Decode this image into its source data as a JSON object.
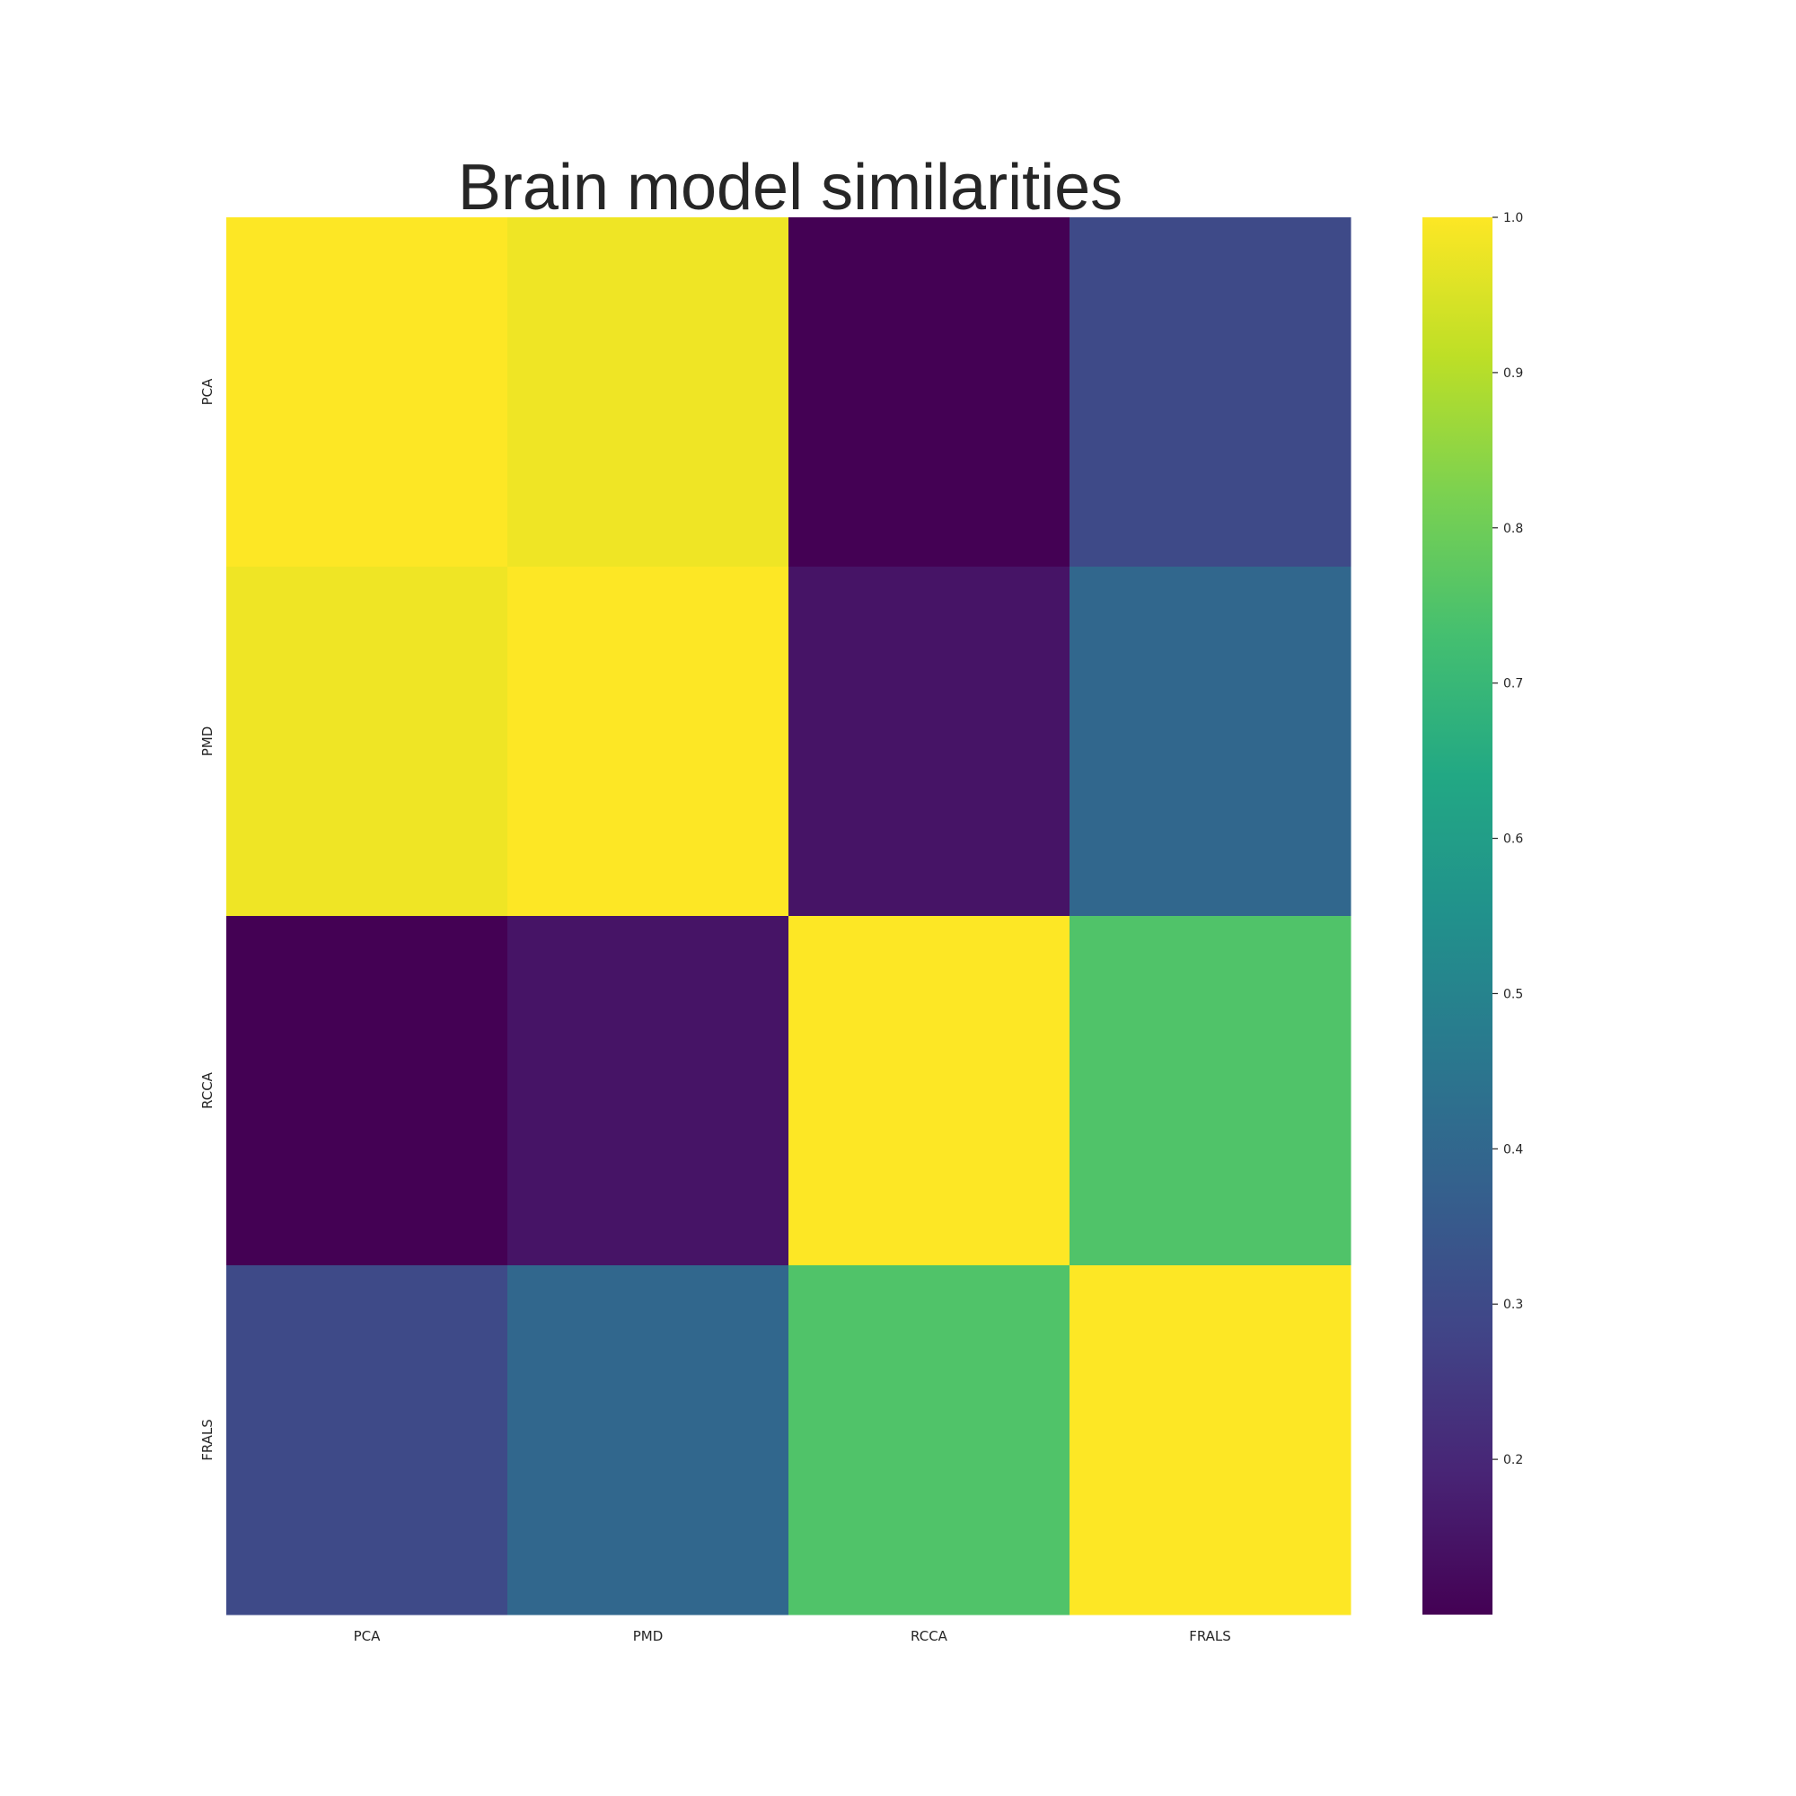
{
  "chart_data": {
    "type": "heatmap",
    "title": "Brain model similarities",
    "xlabel": "",
    "ylabel": "",
    "x_categories": [
      "PCA",
      "PMD",
      "RCCA",
      "FRALS"
    ],
    "y_categories": [
      "PCA",
      "PMD",
      "RCCA",
      "FRALS"
    ],
    "values": [
      [
        1.0,
        0.98,
        0.1,
        0.3
      ],
      [
        0.98,
        1.0,
        0.15,
        0.4
      ],
      [
        0.1,
        0.15,
        1.0,
        0.75
      ],
      [
        0.3,
        0.4,
        0.75,
        1.0
      ]
    ],
    "colormap": "viridis",
    "colorbar": {
      "range": [
        0.1,
        1.0
      ],
      "ticks": [
        0.2,
        0.3,
        0.4,
        0.5,
        0.6,
        0.7,
        0.8,
        0.9,
        1.0
      ],
      "tick_labels": [
        "0.2",
        "0.3",
        "0.4",
        "0.5",
        "0.6",
        "0.7",
        "0.8",
        "0.9",
        "1.0"
      ],
      "placement": "right"
    },
    "grid": false
  }
}
